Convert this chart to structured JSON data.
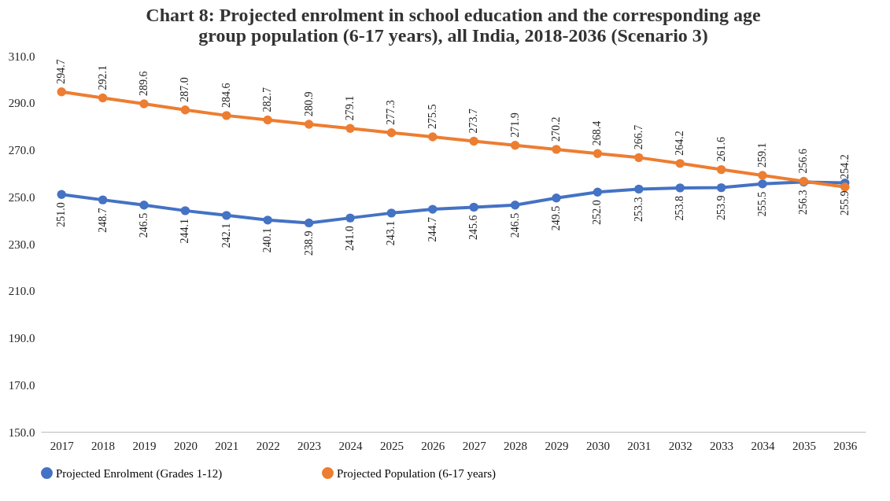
{
  "chart_data": {
    "type": "line",
    "title": "Chart 8: Projected enrolment in school education and the corresponding age group population (6-17 years), all India, 2018-2036 (Scenario 3)",
    "categories": [
      "2017",
      "2018",
      "2019",
      "2020",
      "2021",
      "2022",
      "2023",
      "2024",
      "2025",
      "2026",
      "2027",
      "2028",
      "2029",
      "2030",
      "2031",
      "2032",
      "2033",
      "2034",
      "2035",
      "2036"
    ],
    "series": [
      {
        "name": "Projected Enrolment (Grades 1-12)",
        "color": "#4472c4",
        "values": [
          251.0,
          248.7,
          246.5,
          244.1,
          242.1,
          240.1,
          238.9,
          241.0,
          243.1,
          244.7,
          245.6,
          246.5,
          249.5,
          252.0,
          253.3,
          253.8,
          253.9,
          255.5,
          256.3,
          255.9
        ],
        "value_labels": [
          "251.0",
          "248.7",
          "246.5",
          "244.1",
          "242.1",
          "240.1",
          "238.9",
          "241.0",
          "243.1",
          "244.7",
          "245.6",
          "246.5",
          "249.5",
          "252.0",
          "253.3",
          "253.8",
          "253.9",
          "255.5",
          "256.3",
          "255.9"
        ]
      },
      {
        "name": "Projected Population (6-17 years)",
        "color": "#ed7d31",
        "values": [
          294.7,
          292.1,
          289.6,
          287.0,
          284.6,
          282.7,
          280.9,
          279.1,
          277.3,
          275.5,
          273.7,
          271.9,
          270.2,
          268.4,
          266.7,
          264.2,
          261.6,
          259.1,
          256.6,
          254.2
        ],
        "value_labels": [
          "294.7",
          "292.1",
          "289.6",
          "287.0",
          "284.6",
          "282.7",
          "280.9",
          "279.1",
          "277.3",
          "275.5",
          "273.7",
          "271.9",
          "270.2",
          "268.4",
          "266.7",
          "264.2",
          "261.6",
          "259.1",
          "256.6",
          "254.2"
        ]
      }
    ],
    "ylim": [
      150,
      310
    ],
    "yticks": [
      {
        "value": 150,
        "label": "150.0"
      },
      {
        "value": 170,
        "label": "170.0"
      },
      {
        "value": 190,
        "label": "190.0"
      },
      {
        "value": 210,
        "label": "210.0"
      },
      {
        "value": 230,
        "label": "230.0"
      },
      {
        "value": 250,
        "label": "250.0"
      },
      {
        "value": 270,
        "label": "270.0"
      },
      {
        "value": 290,
        "label": "290.0"
      },
      {
        "value": 310,
        "label": "310.0"
      }
    ],
    "grid": false,
    "legend": "bottom",
    "marker": "circle",
    "line_style": "solid"
  }
}
